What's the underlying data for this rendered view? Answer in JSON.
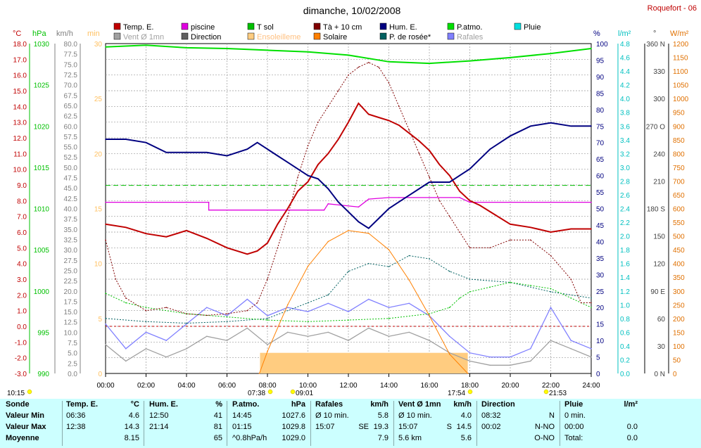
{
  "title": "dimanche, 10/02/2008",
  "station": "Roquefort - 06",
  "legend": [
    {
      "label": "Temp. E.",
      "color": "#c00000"
    },
    {
      "label": "piscine",
      "color": "#e000e0"
    },
    {
      "label": "T sol",
      "color": "#00c000"
    },
    {
      "label": "Tà + 10 cm",
      "color": "#800000"
    },
    {
      "label": "Hum. E.",
      "color": "#000080"
    },
    {
      "label": "P.atmo.",
      "color": "#00e000"
    },
    {
      "label": "Pluie",
      "color": "#00e0e0"
    },
    {
      "label": "Vent Ø 1mn",
      "color": "#a0a0a0"
    },
    {
      "label": "Direction",
      "color": "#606060"
    },
    {
      "label": "Ensoleilleme",
      "color": "#ffcc80"
    },
    {
      "label": "Solaire",
      "color": "#ff8000"
    },
    {
      "label": "P. de rosée*",
      "color": "#006060"
    },
    {
      "label": "Rafales",
      "color": "#8080ff"
    }
  ],
  "axes": {
    "temp": {
      "unit": "°C",
      "color": "#c00000",
      "ticks": [
        "18.0",
        "17.0",
        "16.0",
        "15.0",
        "14.0",
        "13.0",
        "12.0",
        "11.0",
        "10.0",
        "9.0",
        "8.0",
        "7.0",
        "6.0",
        "5.0",
        "4.0",
        "3.0",
        "2.0",
        "1.0",
        "0.0",
        "-1.0",
        "-2.0",
        "-3.0"
      ]
    },
    "press": {
      "unit": "hPa",
      "color": "#00c000",
      "ticks": [
        "1030",
        "1025",
        "1020",
        "1015",
        "1010",
        "1005",
        "1000",
        "995",
        "990"
      ]
    },
    "wind": {
      "unit": "km/h",
      "color": "#808080",
      "ticks": [
        "80.0",
        "77.5",
        "75.0",
        "72.5",
        "70.0",
        "67.5",
        "65.0",
        "62.5",
        "60.0",
        "57.5",
        "55.0",
        "52.5",
        "50.0",
        "47.5",
        "45.0",
        "42.5",
        "40.0",
        "37.5",
        "35.0",
        "32.5",
        "30.0",
        "27.5",
        "25.0",
        "22.5",
        "20.0",
        "17.5",
        "15.0",
        "12.5",
        "10.0",
        "7.5",
        "5.0",
        "2.5",
        "0.0"
      ]
    },
    "min": {
      "unit": "min",
      "color": "#ffc060",
      "ticks": [
        "30",
        "25",
        "20",
        "15",
        "10",
        "5",
        "0"
      ]
    },
    "hum": {
      "unit": "%",
      "color": "#000080",
      "ticks": [
        "100",
        "95",
        "90",
        "85",
        "80",
        "75",
        "70",
        "65",
        "60",
        "55",
        "50",
        "45",
        "40",
        "35",
        "30",
        "25",
        "20",
        "15",
        "10",
        "5",
        "0"
      ]
    },
    "rain": {
      "unit": "l/m²",
      "color": "#00c0c0",
      "ticks": [
        "4.8",
        "4.6",
        "4.4",
        "4.2",
        "4.0",
        "3.8",
        "3.6",
        "3.4",
        "3.2",
        "3.0",
        "2.8",
        "2.6",
        "2.4",
        "2.2",
        "2.0",
        "1.8",
        "1.6",
        "1.4",
        "1.2",
        "1.0",
        "0.8",
        "0.6",
        "0.4",
        "0.2",
        "0.0"
      ]
    },
    "dir": {
      "unit": "°",
      "color": "#404040",
      "ticks": [
        "360 N",
        "330",
        "300",
        "270 O",
        "240",
        "210",
        "180 S",
        "150",
        "120",
        "90 E",
        "60",
        "30",
        "0 N"
      ]
    },
    "solar": {
      "unit": "W/m²",
      "color": "#e07000",
      "ticks": [
        "1200",
        "1150",
        "1100",
        "1050",
        "1000",
        "950",
        "900",
        "850",
        "800",
        "750",
        "700",
        "650",
        "600",
        "550",
        "500",
        "450",
        "400",
        "350",
        "300",
        "250",
        "200",
        "150",
        "100",
        "50",
        "0"
      ]
    },
    "time": {
      "ticks": [
        "00:00",
        "02:00",
        "04:00",
        "06:00",
        "08:00",
        "10:00",
        "12:00",
        "14:00",
        "16:00",
        "18:00",
        "20:00",
        "22:00",
        "24:00"
      ]
    }
  },
  "markers": [
    {
      "label": "10:15",
      "color": "#ffff00"
    },
    {
      "label": "07:38",
      "color": "#ffff00"
    },
    {
      "label": "09:01",
      "color": "#ffff00"
    },
    {
      "label": "17:54",
      "color": "#ffff00"
    },
    {
      "label": "21:53",
      "color": "#ffff00"
    }
  ],
  "chart_data": {
    "type": "line",
    "title": "dimanche, 10/02/2008",
    "x_unit": "hours",
    "series": [
      {
        "name": "Temp. E.",
        "unit": "°C",
        "x": [
          0,
          1,
          2,
          3,
          4,
          5,
          6,
          7,
          7.5,
          8,
          8.5,
          9,
          9.5,
          10,
          10.5,
          11,
          11.5,
          12,
          12.5,
          13,
          13.5,
          14,
          14.5,
          15,
          15.5,
          16,
          16.5,
          17,
          17.5,
          18,
          18.5,
          19,
          20,
          21,
          22,
          23,
          24
        ],
        "y": [
          6.5,
          6.3,
          5.9,
          5.7,
          6.1,
          5.6,
          5.0,
          4.6,
          4.8,
          5.3,
          6.5,
          7.5,
          8.6,
          9.2,
          10.3,
          11.0,
          11.9,
          13.0,
          14.2,
          13.5,
          13.3,
          13.1,
          12.8,
          12.3,
          11.8,
          11.2,
          10.3,
          9.6,
          8.6,
          8.0,
          7.7,
          7.3,
          6.5,
          6.3,
          6.0,
          6.2,
          6.2
        ]
      },
      {
        "name": "piscine",
        "unit": "°C",
        "x": [
          0,
          5.1,
          5.1,
          10.8,
          11.0,
          12.5,
          13.0,
          14.0,
          14.5,
          15.0,
          16.0,
          17.5,
          18.0,
          24
        ],
        "y": [
          7.9,
          7.9,
          7.4,
          7.4,
          7.8,
          7.6,
          8.1,
          8.2,
          8.2,
          8.2,
          8.2,
          8.2,
          7.9,
          7.9
        ]
      },
      {
        "name": "T sol",
        "unit": "°C",
        "x": [
          0,
          1,
          2,
          4,
          6,
          8,
          10,
          12,
          14,
          16,
          17,
          17.5,
          18,
          19,
          20,
          21,
          22,
          23,
          24
        ],
        "y": [
          2.1,
          1.5,
          1.2,
          0.8,
          0.6,
          0.4,
          0.3,
          0.4,
          0.5,
          0.8,
          1.2,
          1.8,
          2.2,
          2.5,
          2.8,
          2.6,
          2.4,
          1.8,
          1.2
        ]
      },
      {
        "name": "Tà + 10 cm",
        "unit": "°C",
        "x": [
          0,
          0.5,
          1,
          2,
          3,
          4,
          5,
          6,
          7,
          7.5,
          8,
          8.5,
          9,
          9.5,
          10,
          10.5,
          11,
          11.5,
          12,
          12.5,
          13,
          13.5,
          14,
          14.5,
          15,
          15.5,
          16,
          16.5,
          17,
          17.5,
          18,
          19,
          20,
          21,
          22,
          23,
          23.5,
          24
        ],
        "y": [
          5.5,
          3.0,
          1.8,
          1.0,
          1.2,
          0.8,
          0.7,
          0.8,
          1.0,
          1.5,
          3.0,
          5.0,
          7.0,
          9.5,
          11.5,
          13.0,
          14.0,
          15.0,
          16.0,
          16.5,
          16.8,
          16.5,
          15.5,
          14.0,
          12.5,
          11.0,
          9.5,
          8.0,
          7.0,
          6.0,
          5.0,
          5.0,
          5.5,
          5.5,
          4.5,
          3.0,
          1.5,
          1.5
        ]
      },
      {
        "name": "Hum. E.",
        "unit": "%",
        "x": [
          0,
          1,
          2,
          3,
          4,
          5,
          6,
          6.5,
          7,
          7.5,
          8,
          8.5,
          9,
          9.5,
          10,
          10.5,
          11,
          11.5,
          12,
          12.5,
          13,
          13.5,
          14,
          14.5,
          15,
          15.5,
          16,
          16.5,
          17,
          17.5,
          18,
          18.5,
          19,
          20,
          21,
          22,
          23,
          24
        ],
        "y": [
          71,
          71,
          70,
          67,
          67,
          67,
          66,
          67,
          68,
          70,
          68,
          66,
          64,
          62,
          60,
          59,
          56,
          52,
          49,
          46,
          44,
          47,
          50,
          52,
          54,
          56,
          58,
          58,
          58,
          60,
          62,
          65,
          68,
          72,
          75,
          76,
          75,
          75
        ]
      },
      {
        "name": "P.atmo.",
        "unit": "hPa",
        "x": [
          0,
          2,
          4,
          6,
          8,
          10,
          12,
          14,
          16,
          18,
          20,
          22,
          24
        ],
        "y": [
          1029.6,
          1029.8,
          1029.5,
          1029.4,
          1029.2,
          1029.0,
          1028.6,
          1027.8,
          1027.6,
          1027.9,
          1028.3,
          1028.8,
          1029.4
        ]
      },
      {
        "name": "Vent Ø 1mn",
        "unit": "km/h",
        "x": [
          0,
          1,
          2,
          3,
          4,
          5,
          6,
          7,
          8,
          9,
          10,
          11,
          12,
          13,
          14,
          15,
          16,
          17,
          18,
          19,
          20,
          21,
          22,
          23,
          24
        ],
        "y": [
          7,
          3,
          6,
          4,
          6,
          9,
          8,
          11,
          7,
          10,
          9,
          10,
          8,
          11,
          9,
          10,
          8,
          5,
          3,
          2,
          2,
          3,
          8,
          6,
          4
        ]
      },
      {
        "name": "Rafales",
        "unit": "km/h",
        "x": [
          0,
          1,
          2,
          3,
          4,
          5,
          6,
          7,
          8,
          9,
          10,
          11,
          12,
          13,
          14,
          15,
          16,
          17,
          18,
          19,
          20,
          21,
          22,
          23,
          24
        ],
        "y": [
          12,
          6,
          10,
          8,
          12,
          16,
          14,
          18,
          14,
          16,
          15,
          17,
          15,
          18,
          16,
          17,
          14,
          9,
          5,
          4,
          4,
          6,
          16,
          8,
          6
        ]
      },
      {
        "name": "Solaire",
        "unit": "W/m²",
        "x": [
          7.6,
          8,
          9,
          10,
          11,
          12,
          13,
          14,
          15,
          16,
          17,
          17.9
        ],
        "y": [
          0,
          80,
          250,
          390,
          480,
          520,
          510,
          450,
          340,
          210,
          70,
          0
        ]
      },
      {
        "name": "P. de rosée*",
        "unit": "°C",
        "x": [
          0,
          2,
          4,
          6,
          8,
          10,
          11,
          12,
          13,
          14,
          15,
          16,
          17,
          18,
          20,
          22,
          24
        ],
        "y": [
          0.5,
          0.3,
          0.2,
          0.3,
          0.5,
          1.5,
          2.0,
          3.5,
          4.0,
          3.8,
          4.5,
          4.3,
          3.5,
          3.0,
          2.8,
          2.2,
          1.8
        ]
      }
    ],
    "sunshine": {
      "name": "Ensoleilleme",
      "start": "07:38",
      "end": "17:54"
    }
  },
  "stats": {
    "sonde": {
      "header": "Sonde",
      "rows": [
        "Valeur Min",
        "Valeur Max",
        "Moyenne"
      ]
    },
    "temp": {
      "header": "Temp. E.",
      "unit": "°C",
      "rows": [
        [
          "06:36",
          "4.6"
        ],
        [
          "12:38",
          "14.3"
        ],
        [
          "",
          "8.15"
        ]
      ]
    },
    "hum": {
      "header": "Hum. E.",
      "unit": "%",
      "rows": [
        [
          "12:50",
          "41"
        ],
        [
          "21:14",
          "81"
        ],
        [
          "",
          "65"
        ]
      ]
    },
    "patmo": {
      "header": "P.atmo.",
      "unit": "hPa",
      "rows": [
        [
          "14:45",
          "1027.6"
        ],
        [
          "01:15",
          "1029.8"
        ],
        [
          "^0.8hPa/h",
          "1029.0"
        ]
      ]
    },
    "rafales": {
      "header": "Rafales",
      "unit": "km/h",
      "rows": [
        [
          "Ø 10 min.",
          "",
          "5.8"
        ],
        [
          "15:07",
          "SE",
          "19.3"
        ],
        [
          "",
          "",
          "7.9"
        ]
      ]
    },
    "vent": {
      "header": "Vent Ø 1mn",
      "unit": "km/h",
      "rows": [
        [
          "Ø 10 min.",
          "",
          "4.0"
        ],
        [
          "15:07",
          "S",
          "14.5"
        ],
        [
          "5.6 km",
          "",
          "5.6"
        ]
      ]
    },
    "direction": {
      "header": "Direction",
      "unit": "",
      "rows": [
        [
          "08:32",
          "N"
        ],
        [
          "00:02",
          "N-NO"
        ],
        [
          "",
          "O-NO"
        ]
      ]
    },
    "pluie": {
      "header": "Pluie",
      "unit": "l/m²",
      "rows": [
        [
          "0 min.",
          ""
        ],
        [
          "00:00",
          "0.0"
        ],
        [
          "Total:",
          "0.0"
        ]
      ]
    }
  }
}
